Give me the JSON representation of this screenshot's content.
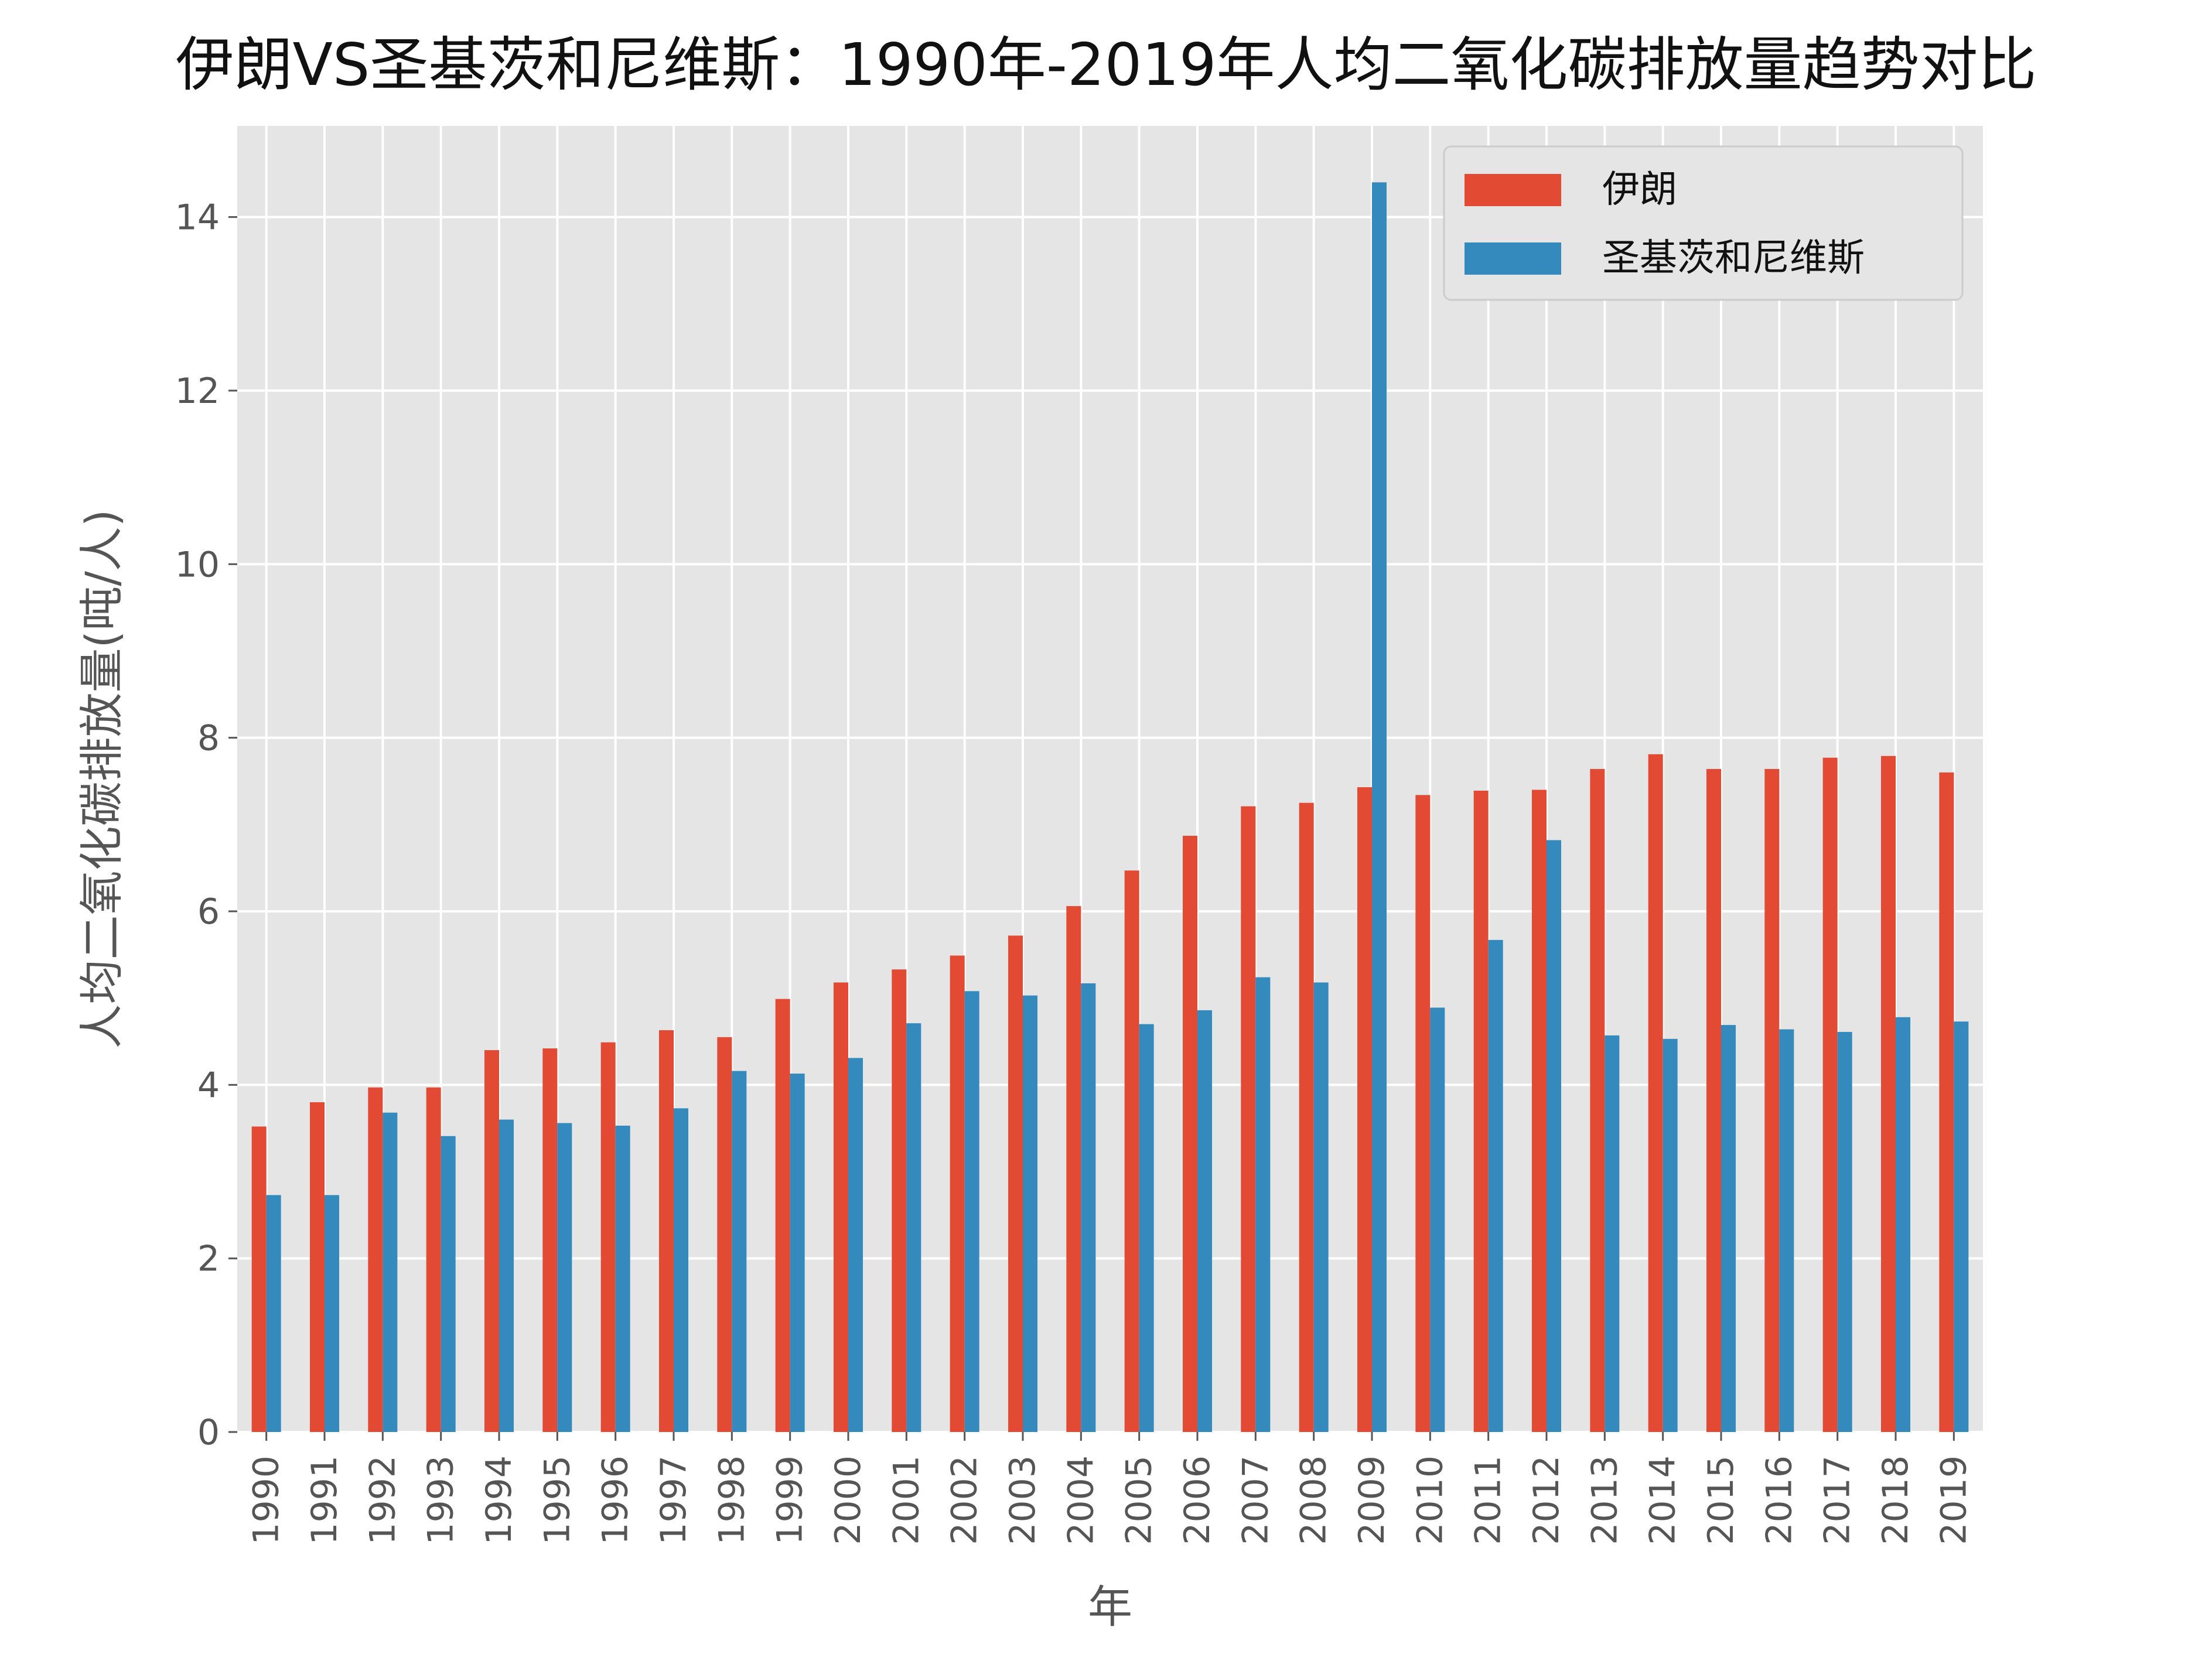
{
  "chart_data": {
    "type": "bar",
    "title": "伊朗VS圣基茨和尼维斯：1990年-2019年人均二氧化碳排放量趋势对比",
    "xlabel": "年",
    "ylabel": "人均二氧化碳排放量(吨/人)",
    "ylim": [
      0,
      15.05
    ],
    "yticks": [
      0,
      2,
      4,
      6,
      8,
      10,
      12,
      14
    ],
    "grid": true,
    "legend_position": "top-right",
    "categories": [
      "1990",
      "1991",
      "1992",
      "1993",
      "1994",
      "1995",
      "1996",
      "1997",
      "1998",
      "1999",
      "2000",
      "2001",
      "2002",
      "2003",
      "2004",
      "2005",
      "2006",
      "2007",
      "2008",
      "2009",
      "2010",
      "2011",
      "2012",
      "2013",
      "2014",
      "2015",
      "2016",
      "2017",
      "2018",
      "2019"
    ],
    "series": [
      {
        "name": "伊朗",
        "color": "#E24A33",
        "values": [
          3.52,
          3.8,
          3.97,
          3.97,
          4.4,
          4.42,
          4.49,
          4.63,
          4.55,
          4.99,
          5.18,
          5.33,
          5.49,
          5.72,
          6.06,
          6.47,
          6.87,
          7.21,
          7.25,
          7.43,
          7.34,
          7.39,
          7.4,
          7.64,
          7.81,
          7.64,
          7.64,
          7.77,
          7.79,
          7.6
        ]
      },
      {
        "name": "圣基茨和尼维斯",
        "color": "#348ABD",
        "values": [
          2.73,
          2.73,
          3.68,
          3.41,
          3.6,
          3.56,
          3.53,
          3.73,
          4.16,
          4.13,
          4.31,
          4.71,
          5.08,
          5.03,
          5.17,
          4.7,
          4.86,
          5.24,
          5.18,
          14.4,
          4.89,
          5.67,
          6.82,
          4.57,
          4.53,
          4.69,
          4.64,
          4.61,
          4.78,
          4.73
        ]
      }
    ]
  }
}
